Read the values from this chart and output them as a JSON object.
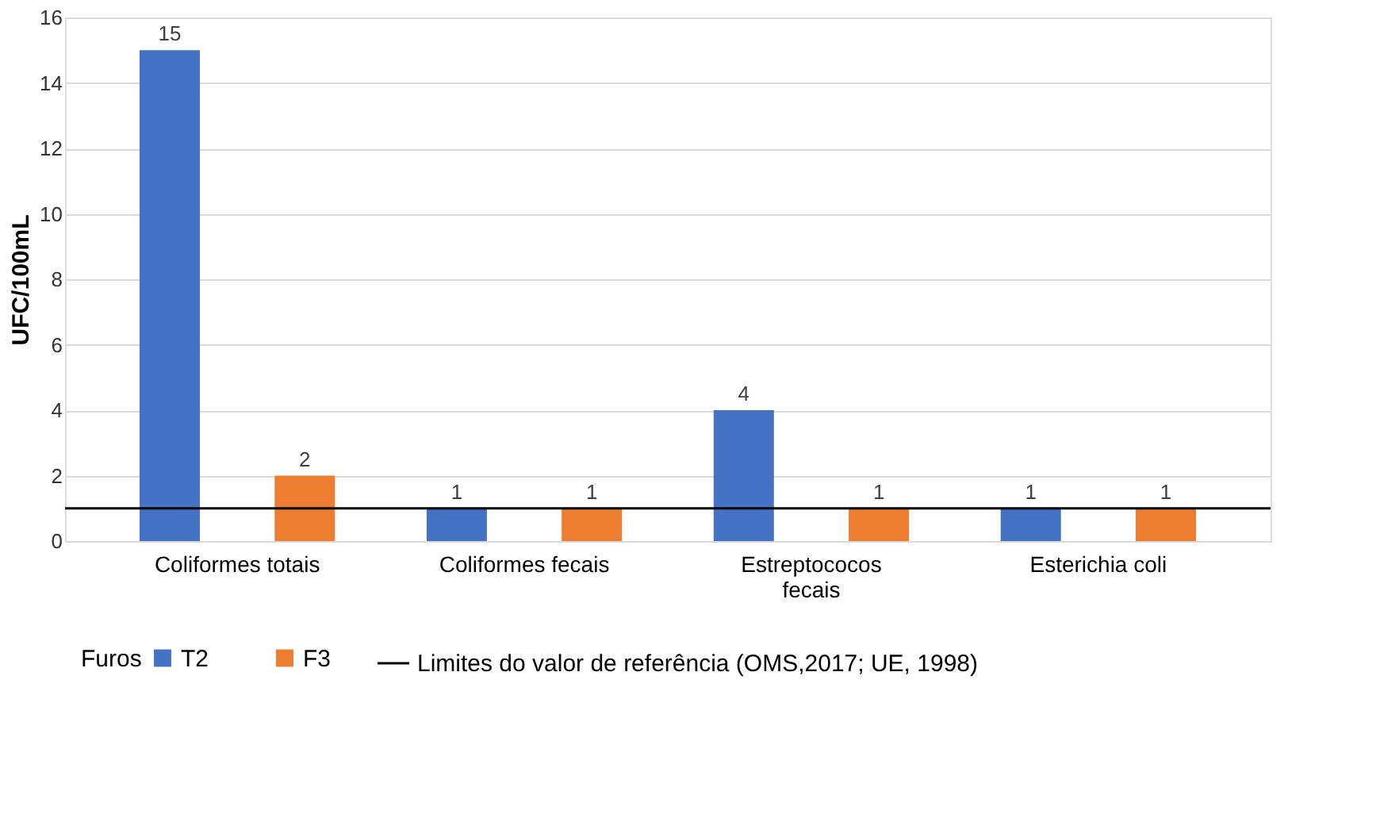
{
  "chart_data": {
    "type": "bar",
    "ylabel": "UFC/100mL",
    "legend_title": "Furos",
    "categories": [
      "Coliformes totais",
      "Coliformes fecais",
      "Estreptococos fecais",
      "Esterichia coli"
    ],
    "series": [
      {
        "name": "T2",
        "color": "#4472c4",
        "values": [
          15,
          1,
          4,
          1
        ]
      },
      {
        "name": "F3",
        "color": "#ed7d31",
        "values": [
          2,
          1,
          1,
          1
        ]
      }
    ],
    "ylim": [
      0,
      16
    ],
    "yticks": [
      0,
      2,
      4,
      6,
      8,
      10,
      12,
      14,
      16
    ],
    "grid": "y",
    "legend": "bottom",
    "data_labels": true,
    "ref_lines": [
      {
        "axis": "y",
        "value": 1,
        "label": "Limites do valor de referência (OMS,2017; UE, 1998)",
        "color": "#000000",
        "line_style": "solid"
      }
    ]
  }
}
